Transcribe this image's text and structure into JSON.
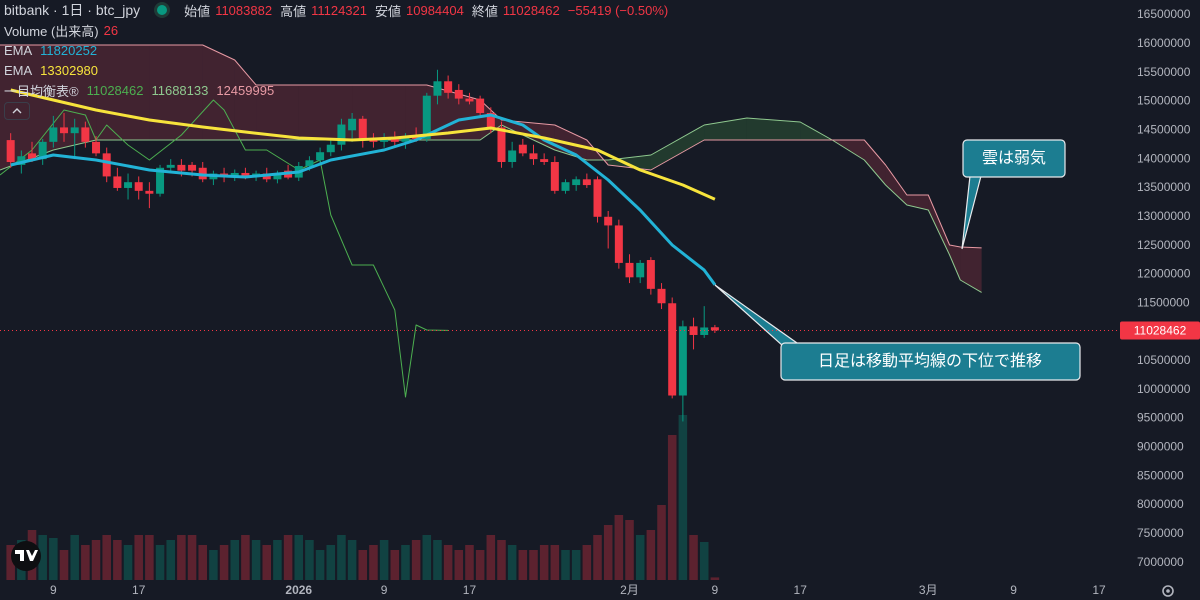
{
  "chart_data": {
    "type": "candlestick",
    "symbol": "bitbank · 1日 · btc_jpy",
    "ohlc_labels": [
      "始値",
      "高値",
      "安値",
      "終値"
    ],
    "change": "−55419 (−0.50%)",
    "up_color": "#089981",
    "down_color": "#f23645",
    "x": [
      5,
      6,
      7,
      8,
      9,
      10,
      11,
      12,
      13,
      14,
      15,
      16,
      17,
      18,
      19,
      20,
      21,
      22,
      23,
      24,
      25,
      26,
      27,
      28,
      29,
      30,
      31,
      32,
      33,
      34,
      35,
      36,
      37,
      38,
      39,
      40,
      41,
      42,
      43,
      44,
      45,
      46,
      47,
      48,
      49,
      50,
      51,
      52,
      53,
      54,
      55,
      56,
      57,
      58,
      59,
      60,
      61,
      62,
      63,
      64,
      65,
      66,
      67,
      68,
      69,
      70,
      71
    ],
    "open": [
      14330000,
      13900000,
      14100000,
      14000000,
      14300000,
      14550000,
      14450000,
      14550000,
      14300000,
      14100000,
      13700000,
      13500000,
      13600000,
      13450000,
      13400000,
      13850000,
      13900000,
      13900000,
      13850000,
      13650000,
      13750000,
      13700000,
      13760000,
      13700000,
      13750000,
      13650000,
      13800000,
      13680000,
      13880000,
      13980000,
      14120000,
      14250000,
      14500000,
      14700000,
      14350000,
      14300000,
      14380000,
      14300000,
      14400000,
      14350000,
      15100000,
      15350000,
      15200000,
      15050000,
      15050000,
      14800000,
      14550000,
      13950000,
      14250000,
      14100000,
      14000000,
      13950000,
      13450000,
      13550000,
      13650000,
      13650000,
      13000000,
      12850000,
      12200000,
      11950000,
      12250000,
      11750000,
      11500000,
      9900000,
      11100000,
      10950000,
      11083882
    ],
    "high": [
      14450000,
      14150000,
      14300000,
      14350000,
      14750000,
      14800000,
      14700000,
      14650000,
      14400000,
      14200000,
      13850000,
      13750000,
      13700000,
      13600000,
      13900000,
      14000000,
      14000000,
      13950000,
      13950000,
      13800000,
      13850000,
      13820000,
      13850000,
      13800000,
      13850000,
      13800000,
      13900000,
      13950000,
      14050000,
      14200000,
      14350000,
      14700000,
      14800000,
      14750000,
      14450000,
      14450000,
      14480000,
      14450000,
      14550000,
      15150000,
      15550000,
      15450000,
      15300000,
      15150000,
      15100000,
      14900000,
      14650000,
      14300000,
      14350000,
      14250000,
      14100000,
      14050000,
      13650000,
      13700000,
      13750000,
      13700000,
      13100000,
      12950000,
      12350000,
      12250000,
      12300000,
      11850000,
      11600000,
      11200000,
      11250000,
      11450000,
      11124321
    ],
    "low": [
      13850000,
      13750000,
      13950000,
      13900000,
      14200000,
      14300000,
      14000000,
      14200000,
      14050000,
      13600000,
      13450000,
      13300000,
      13300000,
      13150000,
      13350000,
      13750000,
      13700000,
      13700000,
      13600000,
      13550000,
      13600000,
      13620000,
      13650000,
      13620000,
      13600000,
      13580000,
      13650000,
      13620000,
      13800000,
      13900000,
      14050000,
      14150000,
      14300000,
      14200000,
      14200000,
      14200000,
      14220000,
      14180000,
      14300000,
      14300000,
      14950000,
      15050000,
      14950000,
      14950000,
      14750000,
      14450000,
      13850000,
      13850000,
      14050000,
      13900000,
      13900000,
      13400000,
      13400000,
      13450000,
      13500000,
      12900000,
      12450000,
      12100000,
      11850000,
      11850000,
      11650000,
      11400000,
      9850000,
      9450000,
      10700000,
      10900000,
      10984404
    ],
    "close": [
      13950000,
      14050000,
      14000000,
      14300000,
      14550000,
      14450000,
      14550000,
      14300000,
      14100000,
      13700000,
      13500000,
      13600000,
      13450000,
      13400000,
      13850000,
      13900000,
      13800000,
      13800000,
      13650000,
      13750000,
      13700000,
      13760000,
      13700000,
      13750000,
      13650000,
      13740000,
      13680000,
      13880000,
      13980000,
      14120000,
      14250000,
      14600000,
      14700000,
      14350000,
      14300000,
      14380000,
      14300000,
      14400000,
      14350000,
      15100000,
      15350000,
      15150000,
      15050000,
      15000000,
      14800000,
      14550000,
      13950000,
      14150000,
      14100000,
      14000000,
      13950000,
      13450000,
      13600000,
      13650000,
      13550000,
      13000000,
      12850000,
      12200000,
      11950000,
      12200000,
      11750000,
      11500000,
      9900000,
      11100000,
      10950000,
      11080000,
      11028462
    ],
    "volume": {
      "name": "Volume (出来高)",
      "ylim": [
        0,
        5800
      ],
      "values": [
        350,
        400,
        500,
        450,
        420,
        300,
        450,
        350,
        400,
        450,
        400,
        350,
        450,
        450,
        350,
        400,
        450,
        450,
        350,
        300,
        350,
        400,
        450,
        400,
        350,
        400,
        450,
        450,
        400,
        300,
        350,
        450,
        400,
        300,
        350,
        400,
        300,
        350,
        400,
        450,
        400,
        350,
        300,
        350,
        300,
        450,
        400,
        350,
        300,
        300,
        350,
        350,
        300,
        300,
        350,
        450,
        550,
        650,
        600,
        450,
        500,
        750,
        1450,
        1650,
        450,
        380,
        26
      ]
    },
    "lines": [
      {
        "name": "EMA",
        "color": "#22b3d6",
        "x": [
          5,
          9,
          13,
          18,
          23,
          27,
          32,
          35,
          40,
          43,
          47,
          50,
          53,
          55,
          58,
          61,
          64,
          67,
          70,
          71
        ],
        "values": [
          13898000,
          14072000,
          13985000,
          13811000,
          13725000,
          13690000,
          13777000,
          13985000,
          14158000,
          14332000,
          14679000,
          14765000,
          14592000,
          14332000,
          14072000,
          13638000,
          13116000,
          12511000,
          12076000,
          11820252
        ]
      },
      {
        "name": "EMA",
        "color": "#f7e43c",
        "x": [
          5,
          9,
          13,
          18,
          23,
          27,
          32,
          37,
          41,
          46,
          50,
          55,
          60,
          64,
          68,
          71
        ],
        "values": [
          15199000,
          15026000,
          14852000,
          14679000,
          14557000,
          14471000,
          14366000,
          14332000,
          14366000,
          14453000,
          14540000,
          14366000,
          14158000,
          13811000,
          13551000,
          13302980
        ]
      }
    ],
    "ichimoku": {
      "name": "一目均衡表®",
      "bull_fill": "rgba(76,175,80,0.22)",
      "bear_fill": "rgba(178,60,80,0.28)",
      "x": [
        4,
        9,
        13,
        18,
        23,
        26,
        28,
        32,
        37,
        42,
        44,
        49,
        51,
        56,
        59,
        61,
        65,
        70,
        74,
        79,
        82,
        85,
        87,
        89,
        91,
        93,
        94,
        96
      ],
      "span_a": {
        "color": "#8fc98f",
        "values": [
          13811000,
          14158000,
          14332000,
          14332000,
          14332000,
          14332000,
          14332000,
          14332000,
          14332000,
          14332000,
          14332000,
          14332000,
          14592000,
          14158000,
          13985000,
          13985000,
          14072000,
          14592000,
          14713000,
          14644000,
          14332000,
          13985000,
          13551000,
          13204000,
          13117000,
          12337000,
          11903000,
          11688133
        ]
      },
      "span_b": {
        "color": "#e79aa4",
        "values": [
          15979000,
          15979000,
          15979000,
          15979000,
          15979000,
          15719000,
          15286000,
          15286000,
          15286000,
          15286000,
          15286000,
          15026000,
          14679000,
          14592000,
          14332000,
          13898000,
          13811000,
          14332000,
          14332000,
          14332000,
          14332000,
          14332000,
          13898000,
          13378000,
          13378000,
          12511000,
          12476000,
          12459995
        ]
      },
      "lagging": {
        "color": "#4caf50",
        "x": [
          4,
          7,
          10,
          12,
          13,
          14,
          16,
          18,
          21,
          24,
          25,
          27,
          29,
          32,
          34,
          35,
          37,
          39,
          41,
          42,
          43,
          44,
          46
        ],
        "values": [
          13725000,
          14158000,
          14852000,
          14765000,
          14332000,
          14592000,
          14245000,
          13985000,
          14418000,
          15026000,
          14852000,
          14158000,
          14158000,
          13811000,
          13985000,
          13031000,
          12163000,
          12163000,
          11383000,
          9874000,
          11123000,
          11036000,
          11028462
        ]
      }
    },
    "xlim": [
      4,
      108.5
    ],
    "xticks": [
      {
        "value": 9,
        "label": "9"
      },
      {
        "value": 17,
        "label": "17"
      },
      {
        "value": 32,
        "label": "2026"
      },
      {
        "value": 40,
        "label": "9"
      },
      {
        "value": 48,
        "label": "17"
      },
      {
        "value": 63,
        "label": "2月"
      },
      {
        "value": 71,
        "label": "9"
      },
      {
        "value": 79,
        "label": "17"
      },
      {
        "value": 91,
        "label": "3月"
      },
      {
        "value": 99,
        "label": "9"
      },
      {
        "value": 107,
        "label": "17"
      }
    ],
    "ylim": [
      6700000,
      16760000
    ],
    "yticks": [
      7000000,
      7500000,
      8000000,
      8500000,
      9000000,
      9500000,
      10000000,
      10500000,
      11000000,
      11500000,
      12000000,
      12500000,
      13000000,
      13500000,
      14000000,
      14500000,
      15000000,
      15500000,
      16000000,
      16500000
    ],
    "annotations": [
      "雲は弱気",
      "日足は移動平均線の下位で推移"
    ]
  }
}
